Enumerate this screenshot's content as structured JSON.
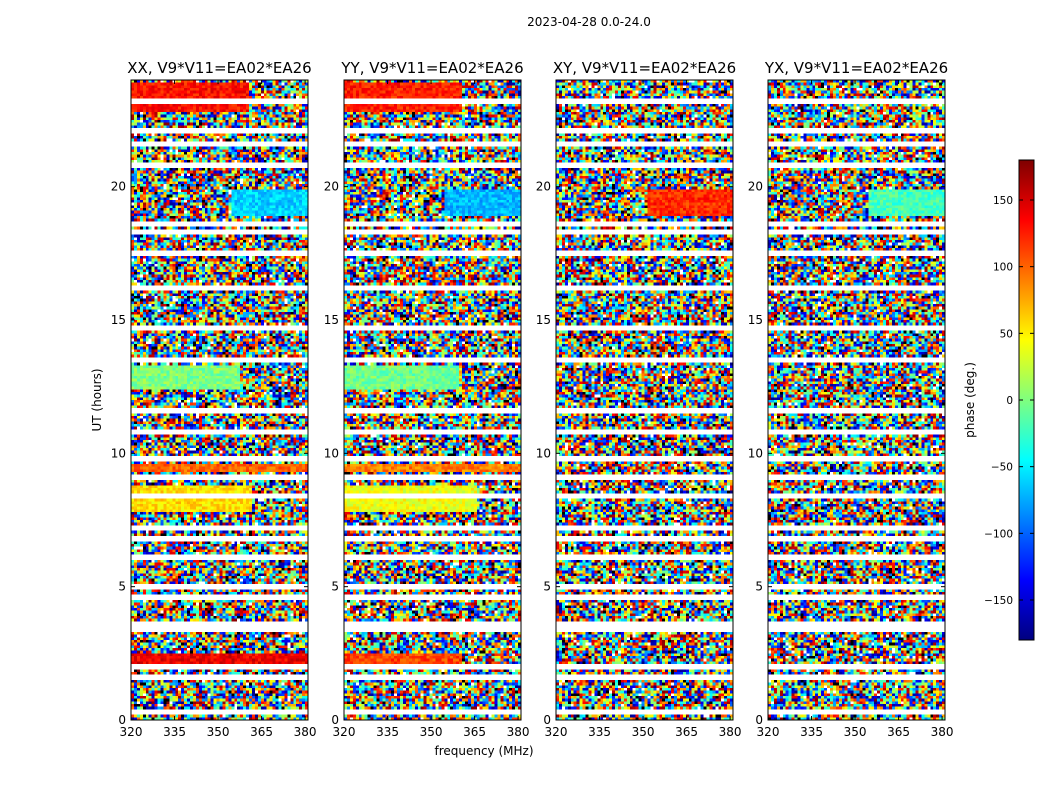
{
  "figure": {
    "suptitle": "2023-04-28 0.0-24.0",
    "shared_xlabel": "frequency (MHz)",
    "shared_ylabel": "UT (hours)"
  },
  "chart_data": [
    {
      "type": "heatmap",
      "title": "XX, V9*V11=EA02*EA26",
      "xlabel": "frequency (MHz)",
      "ylabel": "UT (hours)",
      "xlim": [
        320,
        381
      ],
      "ylim": [
        0,
        24
      ],
      "xticks": [
        320,
        335,
        350,
        365,
        380
      ],
      "yticks": [
        0,
        5,
        10,
        15,
        20
      ],
      "value": "phase (deg.)",
      "vlim": [
        -180,
        180
      ],
      "coherent_bands": [
        {
          "t0": 22.8,
          "t1": 23.9,
          "f0": 320,
          "f1": 361,
          "phase": 130
        },
        {
          "t0": 18.9,
          "t1": 19.9,
          "f0": 355,
          "f1": 381,
          "phase": -60
        },
        {
          "t0": 12.4,
          "t1": 13.3,
          "f0": 320,
          "f1": 358,
          "phase": 0
        },
        {
          "t0": 9.3,
          "t1": 9.6,
          "f0": 320,
          "f1": 381,
          "phase": 100
        },
        {
          "t0": 7.8,
          "t1": 8.8,
          "f0": 320,
          "f1": 362,
          "phase": 55
        },
        {
          "t0": 2.1,
          "t1": 2.5,
          "f0": 320,
          "f1": 381,
          "phase": 140
        }
      ]
    },
    {
      "type": "heatmap",
      "title": "YY, V9*V11=EA02*EA26",
      "xlabel": "frequency (MHz)",
      "ylabel": "UT (hours)",
      "xlim": [
        320,
        381
      ],
      "ylim": [
        0,
        24
      ],
      "xticks": [
        320,
        335,
        350,
        365,
        380
      ],
      "yticks": [
        0,
        5,
        10,
        15,
        20
      ],
      "value": "phase (deg.)",
      "vlim": [
        -180,
        180
      ],
      "coherent_bands": [
        {
          "t0": 22.8,
          "t1": 23.9,
          "f0": 320,
          "f1": 361,
          "phase": 125
        },
        {
          "t0": 18.9,
          "t1": 19.9,
          "f0": 355,
          "f1": 381,
          "phase": -70
        },
        {
          "t0": 12.4,
          "t1": 13.3,
          "f0": 320,
          "f1": 360,
          "phase": -5
        },
        {
          "t0": 9.3,
          "t1": 9.6,
          "f0": 320,
          "f1": 381,
          "phase": 90
        },
        {
          "t0": 7.8,
          "t1": 8.8,
          "f0": 320,
          "f1": 366,
          "phase": 40
        },
        {
          "t0": 2.1,
          "t1": 2.5,
          "f0": 320,
          "f1": 361,
          "phase": 110
        }
      ]
    },
    {
      "type": "heatmap",
      "title": "XY, V9*V11=EA02*EA26",
      "xlabel": "frequency (MHz)",
      "ylabel": "UT (hours)",
      "xlim": [
        320,
        381
      ],
      "ylim": [
        0,
        24
      ],
      "xticks": [
        320,
        335,
        350,
        365,
        380
      ],
      "yticks": [
        0,
        5,
        10,
        15,
        20
      ],
      "value": "phase (deg.)",
      "vlim": [
        -180,
        180
      ],
      "coherent_bands": [
        {
          "t0": 18.9,
          "t1": 19.9,
          "f0": 352,
          "f1": 381,
          "phase": 120
        }
      ]
    },
    {
      "type": "heatmap",
      "title": "YX, V9*V11=EA02*EA26",
      "xlabel": "frequency (MHz)",
      "ylabel": "UT (hours)",
      "xlim": [
        320,
        381
      ],
      "ylim": [
        0,
        24
      ],
      "xticks": [
        320,
        335,
        350,
        365,
        380
      ],
      "yticks": [
        0,
        5,
        10,
        15,
        20
      ],
      "value": "phase (deg.)",
      "vlim": [
        -180,
        180
      ],
      "coherent_bands": [
        {
          "t0": 18.9,
          "t1": 19.9,
          "f0": 355,
          "f1": 381,
          "phase": -20
        }
      ]
    }
  ],
  "flagged_times_h": [
    0.3,
    1.6,
    2.0,
    3.4,
    3.6,
    4.6,
    5.0,
    6.1,
    6.8,
    7.2,
    8.4,
    9.1,
    9.8,
    10.8,
    11.6,
    13.5,
    14.7,
    16.2,
    17.5,
    18.3,
    18.6,
    20.8,
    21.6,
    22.1,
    23.2
  ],
  "colorbar": {
    "label": "phase (deg.)",
    "vmin": -180,
    "vmax": 180,
    "ticks": [
      {
        "value": 150,
        "label": "150"
      },
      {
        "value": 100,
        "label": "100"
      },
      {
        "value": 50,
        "label": "50"
      },
      {
        "value": 0,
        "label": "0"
      },
      {
        "value": -50,
        "label": "−50"
      },
      {
        "value": -100,
        "label": "−100"
      },
      {
        "value": -150,
        "label": "−150"
      }
    ],
    "colormap": "jet",
    "stops": [
      "#00007f",
      "#0000ff",
      "#007fff",
      "#00ffff",
      "#7fff7f",
      "#ffff00",
      "#ff7f00",
      "#ff0000",
      "#7f0000"
    ]
  }
}
